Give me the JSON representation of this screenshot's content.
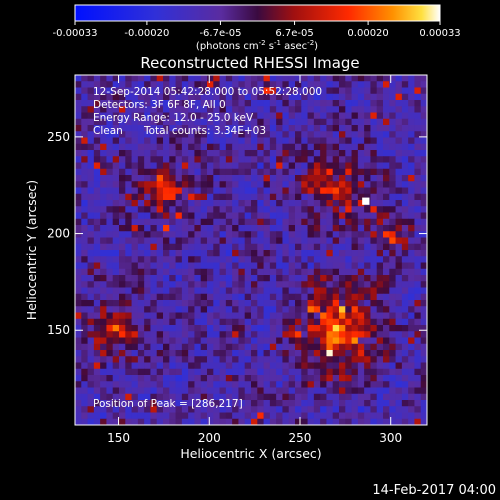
{
  "chart_data": {
    "type": "heatmap",
    "title": "Reconstructed RHESSI Image",
    "xlabel": "Heliocentric X (arcsec)",
    "ylabel": "Heliocentric Y (arcsec)",
    "xlim": [
      126,
      320
    ],
    "ylim": [
      101,
      282
    ],
    "xticks": [
      150,
      200,
      250,
      300
    ],
    "yticks": [
      150,
      200,
      250
    ],
    "colorbar": {
      "label_text": "(photons cm",
      "label_sup1": "-2",
      "label_mid1": " s",
      "label_sup2": "-1",
      "label_mid2": " asec",
      "label_sup3": "-2",
      "label_end": ")",
      "range": [
        -0.00033,
        0.00033
      ],
      "ticks": [
        {
          "value": -0.00033,
          "label": "-0.00033"
        },
        {
          "value": -0.0002,
          "label": "-0.00020"
        },
        {
          "value": -6.7e-05,
          "label": "-6.7e-05"
        },
        {
          "value": 6.7e-05,
          "label": "6.7e-05"
        },
        {
          "value": 0.0002,
          "label": "0.00020"
        },
        {
          "value": 0.00033,
          "label": "0.00033"
        }
      ]
    },
    "annotations": {
      "time_range": "12-Sep-2014 05:42:28.000 to 05:52:28.000",
      "detectors": "Detectors: 3F 6F 8F, All 0",
      "energy": "Energy Range: 12.0 - 25.0 keV",
      "method": "Clean",
      "counts": "Total counts: 3.34E+03",
      "peak": "Position of Peak = [286,217]"
    },
    "peak": {
      "x": 286,
      "y": 217
    },
    "sources": [
      {
        "x": 272,
        "y": 150,
        "sigma": 14,
        "amp": 0.0003
      },
      {
        "x": 268,
        "y": 225,
        "sigma": 11,
        "amp": 0.00022
      },
      {
        "x": 175,
        "y": 222,
        "sigma": 10,
        "amp": 0.00018
      },
      {
        "x": 148,
        "y": 150,
        "sigma": 11,
        "amp": 0.00016
      },
      {
        "x": 300,
        "y": 200,
        "sigma": 9,
        "amp": 0.00012
      }
    ]
  },
  "footer": {
    "date": "14-Feb-2017 04:00"
  }
}
